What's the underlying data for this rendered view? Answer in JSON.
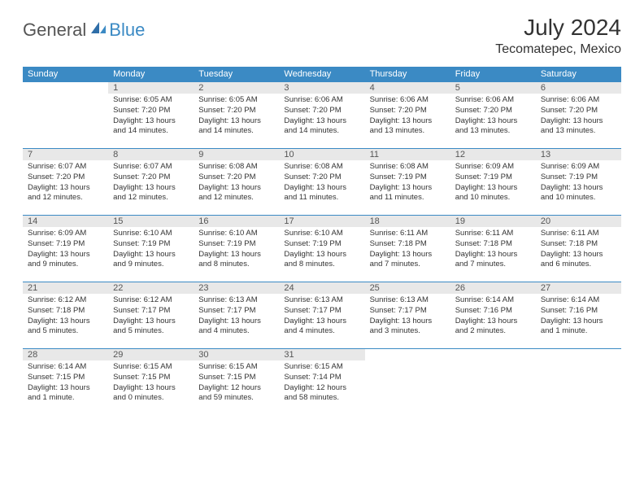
{
  "logo": {
    "part1": "General",
    "part2": "Blue"
  },
  "title": "July 2024",
  "location": "Tecomatepec, Mexico",
  "weekdays": [
    "Sunday",
    "Monday",
    "Tuesday",
    "Wednesday",
    "Thursday",
    "Friday",
    "Saturday"
  ],
  "colors": {
    "header_bg": "#3b8ac4",
    "header_fg": "#ffffff",
    "daynum_bg": "#e8e8e8",
    "border": "#3b8ac4",
    "logo_text1": "#555555",
    "logo_text2": "#3b8ac4"
  },
  "layout": {
    "first_weekday_offset": 1,
    "days_in_month": 31
  },
  "days": [
    {
      "n": 1,
      "sr": "6:05 AM",
      "ss": "7:20 PM",
      "dl": "13 hours and 14 minutes."
    },
    {
      "n": 2,
      "sr": "6:05 AM",
      "ss": "7:20 PM",
      "dl": "13 hours and 14 minutes."
    },
    {
      "n": 3,
      "sr": "6:06 AM",
      "ss": "7:20 PM",
      "dl": "13 hours and 14 minutes."
    },
    {
      "n": 4,
      "sr": "6:06 AM",
      "ss": "7:20 PM",
      "dl": "13 hours and 13 minutes."
    },
    {
      "n": 5,
      "sr": "6:06 AM",
      "ss": "7:20 PM",
      "dl": "13 hours and 13 minutes."
    },
    {
      "n": 6,
      "sr": "6:06 AM",
      "ss": "7:20 PM",
      "dl": "13 hours and 13 minutes."
    },
    {
      "n": 7,
      "sr": "6:07 AM",
      "ss": "7:20 PM",
      "dl": "13 hours and 12 minutes."
    },
    {
      "n": 8,
      "sr": "6:07 AM",
      "ss": "7:20 PM",
      "dl": "13 hours and 12 minutes."
    },
    {
      "n": 9,
      "sr": "6:08 AM",
      "ss": "7:20 PM",
      "dl": "13 hours and 12 minutes."
    },
    {
      "n": 10,
      "sr": "6:08 AM",
      "ss": "7:20 PM",
      "dl": "13 hours and 11 minutes."
    },
    {
      "n": 11,
      "sr": "6:08 AM",
      "ss": "7:19 PM",
      "dl": "13 hours and 11 minutes."
    },
    {
      "n": 12,
      "sr": "6:09 AM",
      "ss": "7:19 PM",
      "dl": "13 hours and 10 minutes."
    },
    {
      "n": 13,
      "sr": "6:09 AM",
      "ss": "7:19 PM",
      "dl": "13 hours and 10 minutes."
    },
    {
      "n": 14,
      "sr": "6:09 AM",
      "ss": "7:19 PM",
      "dl": "13 hours and 9 minutes."
    },
    {
      "n": 15,
      "sr": "6:10 AM",
      "ss": "7:19 PM",
      "dl": "13 hours and 9 minutes."
    },
    {
      "n": 16,
      "sr": "6:10 AM",
      "ss": "7:19 PM",
      "dl": "13 hours and 8 minutes."
    },
    {
      "n": 17,
      "sr": "6:10 AM",
      "ss": "7:19 PM",
      "dl": "13 hours and 8 minutes."
    },
    {
      "n": 18,
      "sr": "6:11 AM",
      "ss": "7:18 PM",
      "dl": "13 hours and 7 minutes."
    },
    {
      "n": 19,
      "sr": "6:11 AM",
      "ss": "7:18 PM",
      "dl": "13 hours and 7 minutes."
    },
    {
      "n": 20,
      "sr": "6:11 AM",
      "ss": "7:18 PM",
      "dl": "13 hours and 6 minutes."
    },
    {
      "n": 21,
      "sr": "6:12 AM",
      "ss": "7:18 PM",
      "dl": "13 hours and 5 minutes."
    },
    {
      "n": 22,
      "sr": "6:12 AM",
      "ss": "7:17 PM",
      "dl": "13 hours and 5 minutes."
    },
    {
      "n": 23,
      "sr": "6:13 AM",
      "ss": "7:17 PM",
      "dl": "13 hours and 4 minutes."
    },
    {
      "n": 24,
      "sr": "6:13 AM",
      "ss": "7:17 PM",
      "dl": "13 hours and 4 minutes."
    },
    {
      "n": 25,
      "sr": "6:13 AM",
      "ss": "7:17 PM",
      "dl": "13 hours and 3 minutes."
    },
    {
      "n": 26,
      "sr": "6:14 AM",
      "ss": "7:16 PM",
      "dl": "13 hours and 2 minutes."
    },
    {
      "n": 27,
      "sr": "6:14 AM",
      "ss": "7:16 PM",
      "dl": "13 hours and 1 minute."
    },
    {
      "n": 28,
      "sr": "6:14 AM",
      "ss": "7:15 PM",
      "dl": "13 hours and 1 minute."
    },
    {
      "n": 29,
      "sr": "6:15 AM",
      "ss": "7:15 PM",
      "dl": "13 hours and 0 minutes."
    },
    {
      "n": 30,
      "sr": "6:15 AM",
      "ss": "7:15 PM",
      "dl": "12 hours and 59 minutes."
    },
    {
      "n": 31,
      "sr": "6:15 AM",
      "ss": "7:14 PM",
      "dl": "12 hours and 58 minutes."
    }
  ],
  "labels": {
    "sunrise": "Sunrise:",
    "sunset": "Sunset:",
    "daylight": "Daylight:"
  }
}
